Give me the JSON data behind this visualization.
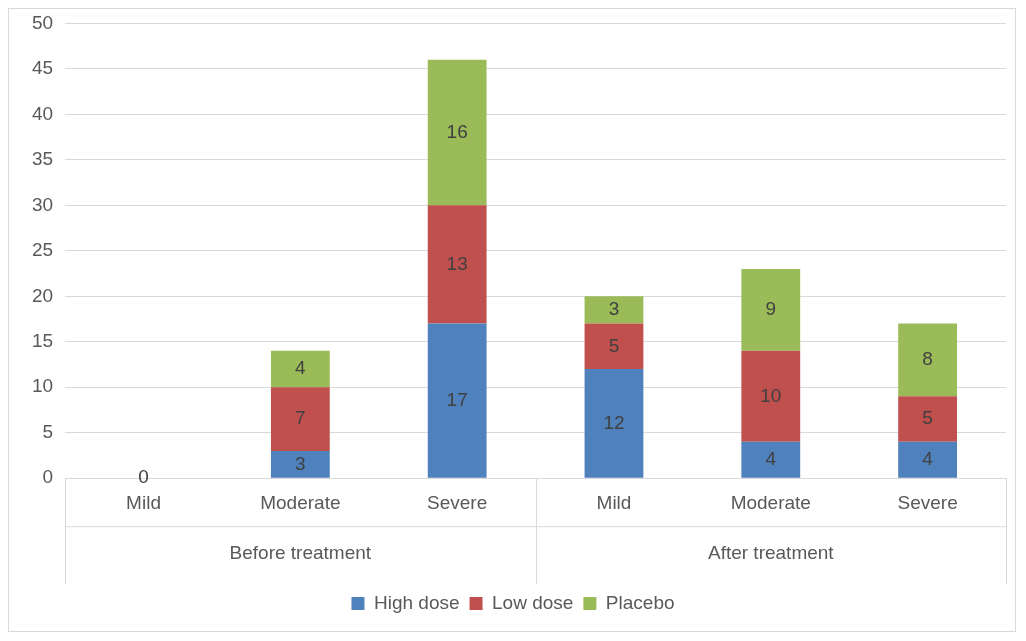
{
  "chart_data": {
    "type": "bar",
    "stacked": true,
    "categories": [
      "Mild",
      "Moderate",
      "Severe",
      "Mild",
      "Moderate",
      "Severe"
    ],
    "series": [
      {
        "name": "High dose",
        "color": "#4f81bd",
        "values": [
          0,
          3,
          17,
          12,
          4,
          4
        ],
        "value_labels": [
          "0",
          "3",
          "17",
          "12",
          "4",
          "4"
        ]
      },
      {
        "name": "Low dose",
        "color": "#c0504d",
        "values": [
          0,
          7,
          13,
          5,
          10,
          5
        ],
        "value_labels": [
          null,
          "7",
          "13",
          "5",
          "10",
          "5"
        ]
      },
      {
        "name": "Placebo",
        "color": "#9bbb59",
        "values": [
          0,
          4,
          16,
          3,
          9,
          8
        ],
        "value_labels": [
          null,
          "4",
          "16",
          "3",
          "9",
          "8"
        ]
      }
    ],
    "annotations": [
      "Before treatment",
      "After treatment"
    ],
    "ylim": [
      0,
      50
    ],
    "yticks": [
      0,
      5,
      10,
      15,
      20,
      25,
      30,
      35,
      40,
      45,
      50
    ],
    "grid": "y",
    "legend": "bottom"
  }
}
